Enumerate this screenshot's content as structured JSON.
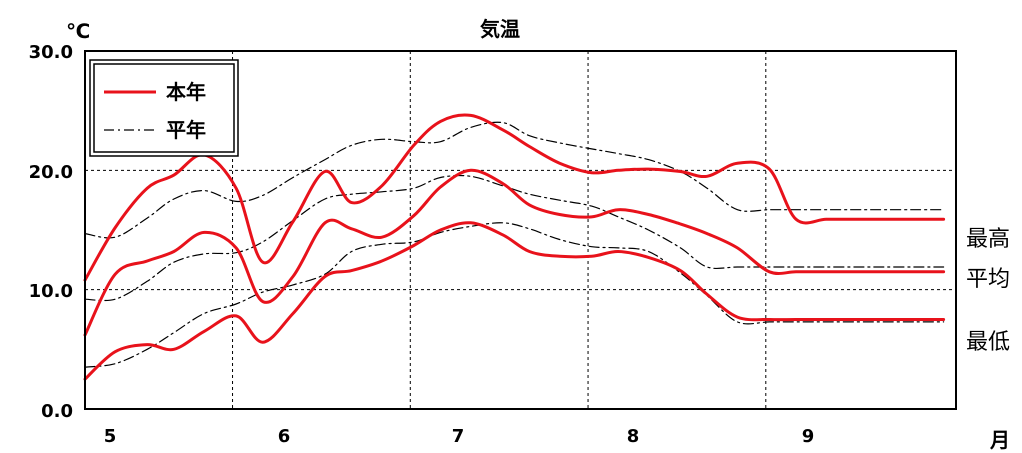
{
  "chart_data": {
    "type": "line",
    "title": "気温",
    "ylabel": "℃",
    "xlabel": "月",
    "ylim": [
      0,
      30
    ],
    "yticks": [
      "0.0",
      "10.0",
      "20.0",
      "30.0"
    ],
    "xlim": [
      5,
      9.9
    ],
    "month_ticks": [
      "5",
      "6",
      "7",
      "8",
      "9"
    ],
    "grid": true,
    "legend_position": "top-left",
    "legend": [
      {
        "label": "本年",
        "style": "solid",
        "color": "#e8121b"
      },
      {
        "label": "平年",
        "style": "dash-dot",
        "color": "#000000"
      }
    ],
    "side_labels": [
      "最高",
      "平均",
      "最低"
    ],
    "series": [
      {
        "name": "本年",
        "group": "最高",
        "style": "solid",
        "color": "#e8121b",
        "x": [
          5.0,
          5.17,
          5.35,
          5.5,
          5.67,
          5.85,
          6.0,
          6.17,
          6.35,
          6.5,
          6.67,
          6.85,
          7.0,
          7.17,
          7.35,
          7.5,
          7.67,
          7.85,
          8.0,
          8.17,
          8.35,
          8.5,
          8.67,
          8.85,
          9.0,
          9.17,
          9.35,
          9.5,
          9.67,
          9.83
        ],
        "y": [
          10.8,
          15.2,
          18.5,
          19.6,
          21.3,
          18.5,
          12.3,
          15.7,
          19.9,
          17.3,
          18.7,
          22.1,
          24.1,
          24.6,
          23.4,
          22.0,
          20.6,
          19.8,
          20.0,
          20.1,
          19.9,
          19.5,
          20.6,
          20.1,
          15.9,
          15.9,
          15.9,
          15.9,
          15.9,
          15.9
        ]
      },
      {
        "name": "本年",
        "group": "平均",
        "style": "solid",
        "color": "#e8121b",
        "x": [
          5.0,
          5.17,
          5.35,
          5.5,
          5.67,
          5.85,
          6.0,
          6.17,
          6.35,
          6.5,
          6.67,
          6.85,
          7.0,
          7.17,
          7.35,
          7.5,
          7.67,
          7.85,
          8.0,
          8.17,
          8.35,
          8.5,
          8.67,
          8.85,
          9.0,
          9.17,
          9.35,
          9.5,
          9.67,
          9.83
        ],
        "y": [
          6.2,
          11.3,
          12.4,
          13.2,
          14.8,
          13.5,
          9.0,
          11.1,
          15.6,
          15.1,
          14.4,
          16.2,
          18.6,
          20.0,
          18.9,
          17.1,
          16.3,
          16.1,
          16.7,
          16.3,
          15.5,
          14.7,
          13.5,
          11.5,
          11.5,
          11.5,
          11.5,
          11.5,
          11.5,
          11.5
        ]
      },
      {
        "name": "本年",
        "group": "最低",
        "style": "solid",
        "color": "#e8121b",
        "x": [
          5.0,
          5.17,
          5.35,
          5.5,
          5.67,
          5.85,
          6.0,
          6.17,
          6.35,
          6.5,
          6.67,
          6.85,
          7.0,
          7.17,
          7.35,
          7.5,
          7.67,
          7.85,
          8.0,
          8.17,
          8.35,
          8.5,
          8.67,
          8.85,
          9.0,
          9.17,
          9.35,
          9.5,
          9.67,
          9.83
        ],
        "y": [
          2.5,
          4.8,
          5.4,
          5.0,
          6.5,
          7.8,
          5.6,
          8.0,
          11.1,
          11.6,
          12.4,
          13.7,
          15.0,
          15.6,
          14.6,
          13.2,
          12.8,
          12.8,
          13.2,
          12.7,
          11.6,
          9.6,
          7.7,
          7.5,
          7.5,
          7.5,
          7.5,
          7.5,
          7.5,
          7.5
        ]
      },
      {
        "name": "平年",
        "group": "最高",
        "style": "dash-dot",
        "color": "#000000",
        "x": [
          5.0,
          5.17,
          5.35,
          5.5,
          5.67,
          5.85,
          6.0,
          6.17,
          6.35,
          6.5,
          6.67,
          6.85,
          7.0,
          7.17,
          7.35,
          7.5,
          7.67,
          7.85,
          8.0,
          8.17,
          8.35,
          8.5,
          8.67,
          8.85,
          9.0,
          9.17,
          9.35,
          9.5,
          9.67,
          9.83
        ],
        "y": [
          14.7,
          14.4,
          16.0,
          17.6,
          18.3,
          17.4,
          17.9,
          19.4,
          20.9,
          22.1,
          22.6,
          22.4,
          22.4,
          23.6,
          24.0,
          22.9,
          22.3,
          21.8,
          21.4,
          20.9,
          19.9,
          18.5,
          16.7,
          16.7,
          16.7,
          16.7,
          16.7,
          16.7,
          16.7,
          16.7
        ]
      },
      {
        "name": "平年",
        "group": "平均",
        "style": "dash-dot",
        "color": "#000000",
        "x": [
          5.0,
          5.17,
          5.35,
          5.5,
          5.67,
          5.85,
          6.0,
          6.17,
          6.35,
          6.5,
          6.67,
          6.85,
          7.0,
          7.17,
          7.35,
          7.5,
          7.67,
          7.85,
          8.0,
          8.17,
          8.35,
          8.5,
          8.67,
          8.85,
          9.0,
          9.17,
          9.35,
          9.5,
          9.67,
          9.83
        ],
        "y": [
          9.2,
          9.2,
          10.7,
          12.3,
          13.0,
          13.1,
          14.0,
          15.8,
          17.6,
          18.0,
          18.2,
          18.5,
          19.4,
          19.5,
          18.7,
          18.0,
          17.5,
          17.0,
          16.1,
          15.0,
          13.5,
          11.9,
          11.9,
          11.9,
          11.9,
          11.9,
          11.9,
          11.9,
          11.9,
          11.9
        ]
      },
      {
        "name": "平年",
        "group": "最低",
        "style": "dash-dot",
        "color": "#000000",
        "x": [
          5.0,
          5.17,
          5.35,
          5.5,
          5.67,
          5.85,
          6.0,
          6.17,
          6.35,
          6.5,
          6.67,
          6.85,
          7.0,
          7.17,
          7.35,
          7.5,
          7.67,
          7.85,
          8.0,
          8.17,
          8.35,
          8.5,
          8.67,
          8.85,
          9.0,
          9.17,
          9.35,
          9.5,
          9.67,
          9.83
        ],
        "y": [
          3.5,
          3.8,
          5.0,
          6.4,
          8.0,
          8.8,
          9.8,
          10.4,
          11.3,
          13.2,
          13.8,
          14.0,
          14.8,
          15.3,
          15.6,
          15.1,
          14.2,
          13.6,
          13.5,
          13.2,
          11.4,
          9.5,
          7.3,
          7.3,
          7.3,
          7.3,
          7.3,
          7.3,
          7.3,
          7.3
        ]
      }
    ]
  }
}
